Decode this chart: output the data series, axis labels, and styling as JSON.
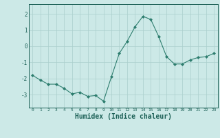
{
  "x": [
    0,
    1,
    2,
    3,
    4,
    5,
    6,
    7,
    8,
    9,
    10,
    11,
    12,
    13,
    14,
    15,
    16,
    17,
    18,
    19,
    20,
    21,
    22,
    23
  ],
  "y": [
    -1.8,
    -2.1,
    -2.35,
    -2.35,
    -2.6,
    -2.95,
    -2.85,
    -3.1,
    -3.05,
    -3.4,
    -1.9,
    -0.45,
    0.3,
    1.2,
    1.85,
    1.65,
    0.6,
    -0.65,
    -1.1,
    -1.1,
    -0.85,
    -0.7,
    -0.65,
    -0.45
  ],
  "line_color": "#2d7d6e",
  "marker": "D",
  "marker_size": 2,
  "background_color": "#cce9e7",
  "grid_color": "#aacfcc",
  "tick_color": "#1a5f55",
  "xlabel": "Humidex (Indice chaleur)",
  "xlabel_fontsize": 7,
  "ylabel_ticks": [
    -3,
    -2,
    -1,
    0,
    1,
    2
  ],
  "ylim": [
    -3.8,
    2.6
  ],
  "xlim": [
    -0.5,
    23.5
  ]
}
